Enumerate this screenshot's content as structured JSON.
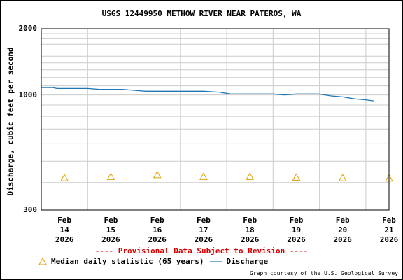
{
  "chart_data": {
    "type": "line",
    "title": "USGS 12449950 METHOW RIVER NEAR PATEROS, WA",
    "ylabel": "Discharge, cubic feet per second",
    "xlabel": "",
    "y_scale": "log",
    "ylim": [
      300,
      2000
    ],
    "y_ticks": [
      "2000",
      "1000",
      "300"
    ],
    "xlim": [
      "2026-02-14T00:00",
      "2026-02-21T12:00"
    ],
    "x_ticks": [
      {
        "date": "2026-02-14T12:00",
        "month": "Feb",
        "day": "14",
        "year": "2026"
      },
      {
        "date": "2026-02-15T12:00",
        "month": "Feb",
        "day": "15",
        "year": "2026"
      },
      {
        "date": "2026-02-16T12:00",
        "month": "Feb",
        "day": "16",
        "year": "2026"
      },
      {
        "date": "2026-02-17T12:00",
        "month": "Feb",
        "day": "17",
        "year": "2026"
      },
      {
        "date": "2026-02-18T12:00",
        "month": "Feb",
        "day": "18",
        "year": "2026"
      },
      {
        "date": "2026-02-19T12:00",
        "month": "Feb",
        "day": "19",
        "year": "2026"
      },
      {
        "date": "2026-02-20T12:00",
        "month": "Feb",
        "day": "20",
        "year": "2026"
      },
      {
        "date": "2026-02-21T12:00",
        "month": "Feb",
        "day": "21",
        "year": "2026"
      }
    ],
    "grid": true,
    "legend_position": "bottom",
    "series": [
      {
        "name": "Discharge",
        "kind": "line",
        "color": "#1f77b4",
        "points": [
          [
            "2026-02-14T00:00",
            1080
          ],
          [
            "2026-02-14T06:00",
            1080
          ],
          [
            "2026-02-14T08:00",
            1070
          ],
          [
            "2026-02-15T00:00",
            1070
          ],
          [
            "2026-02-15T06:00",
            1060
          ],
          [
            "2026-02-15T18:00",
            1060
          ],
          [
            "2026-02-16T00:00",
            1050
          ],
          [
            "2026-02-16T06:00",
            1040
          ],
          [
            "2026-02-17T00:00",
            1040
          ],
          [
            "2026-02-17T12:00",
            1040
          ],
          [
            "2026-02-17T20:00",
            1030
          ],
          [
            "2026-02-18T02:00",
            1010
          ],
          [
            "2026-02-18T12:00",
            1010
          ],
          [
            "2026-02-18T18:00",
            1010
          ],
          [
            "2026-02-19T00:00",
            1010
          ],
          [
            "2026-02-19T06:00",
            1000
          ],
          [
            "2026-02-19T12:00",
            1010
          ],
          [
            "2026-02-20T00:00",
            1010
          ],
          [
            "2026-02-20T06:00",
            990
          ],
          [
            "2026-02-20T12:00",
            980
          ],
          [
            "2026-02-20T18:00",
            960
          ],
          [
            "2026-02-21T00:00",
            950
          ],
          [
            "2026-02-21T04:00",
            940
          ]
        ]
      },
      {
        "name": "Median daily statistic (65 years)",
        "kind": "marker",
        "marker": "triangle",
        "color": "#e0a000",
        "points": [
          [
            "2026-02-14T12:00",
            420
          ],
          [
            "2026-02-15T12:00",
            425
          ],
          [
            "2026-02-16T12:00",
            433
          ],
          [
            "2026-02-17T12:00",
            425
          ],
          [
            "2026-02-18T12:00",
            425
          ],
          [
            "2026-02-19T12:00",
            422
          ],
          [
            "2026-02-20T12:00",
            420
          ],
          [
            "2026-02-21T12:00",
            418
          ]
        ]
      }
    ]
  },
  "legend": {
    "median_label": "Median daily statistic (65 years)",
    "discharge_label": "Discharge"
  },
  "notice": "---- Provisional Data Subject to Revision ----",
  "credit": "Graph courtesy of the U.S. Geological Survey",
  "colors": {
    "discharge": "#1f77b4",
    "median": "#e0a000",
    "notice": "#d40000",
    "grid": "#cccccc"
  }
}
